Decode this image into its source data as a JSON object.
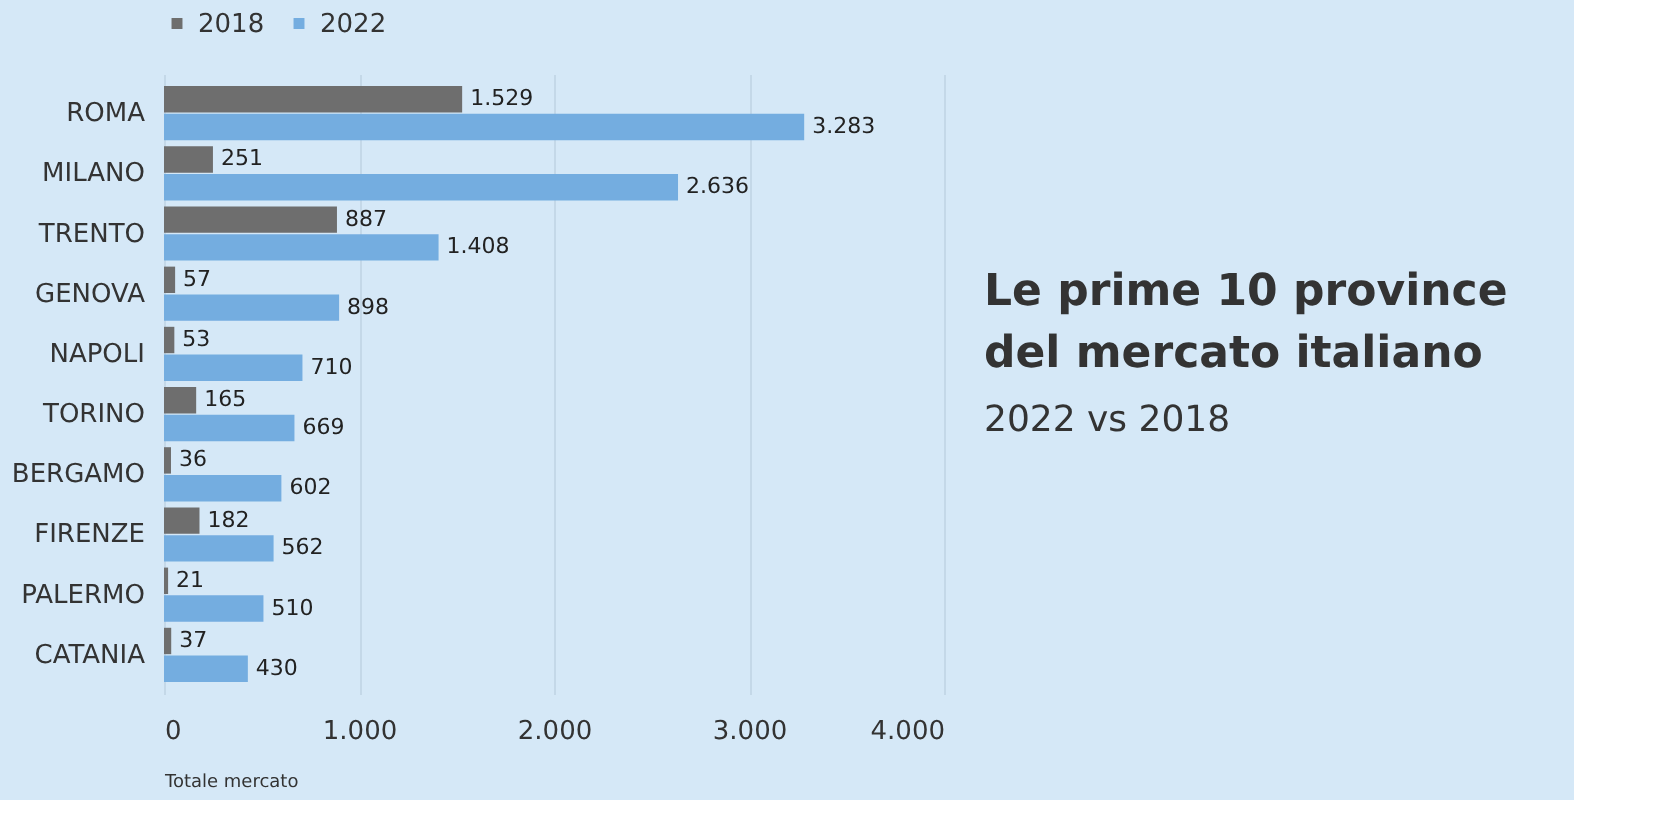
{
  "chart_data": {
    "type": "bar",
    "orientation": "horizontal",
    "title": "Le prime 10 province del mercato italiano",
    "subtitle": "2022 vs 2018",
    "xlabel": "Totale mercato",
    "categories": [
      "ROMA",
      "MILANO",
      "TRENTO",
      "GENOVA",
      "NAPOLI",
      "TORINO",
      "BERGAMO",
      "FIRENZE",
      "PALERMO",
      "CATANIA"
    ],
    "series": [
      {
        "name": "2018",
        "color": "#6e6e6e",
        "values": [
          1529,
          251,
          887,
          57,
          53,
          165,
          36,
          182,
          21,
          37
        ],
        "value_labels": [
          "1.529",
          "251",
          "887",
          "57",
          "53",
          "165",
          "36",
          "182",
          "21",
          "37"
        ]
      },
      {
        "name": "2022",
        "color": "#74ade0",
        "values": [
          3283,
          2636,
          1408,
          898,
          710,
          669,
          602,
          562,
          510,
          430
        ],
        "value_labels": [
          "3.283",
          "2.636",
          "1.408",
          "898",
          "710",
          "669",
          "602",
          "562",
          "510",
          "430"
        ]
      }
    ],
    "xlim": [
      0,
      4000
    ],
    "xticks": [
      0,
      {
        "value": 1000,
        "label": "1.000"
      },
      {
        "value": 2000,
        "label": "2.000"
      },
      {
        "value": 3000,
        "label": "3.000"
      },
      {
        "value": 4000,
        "label": "4.000"
      }
    ],
    "grid": "x",
    "legend": "top"
  }
}
